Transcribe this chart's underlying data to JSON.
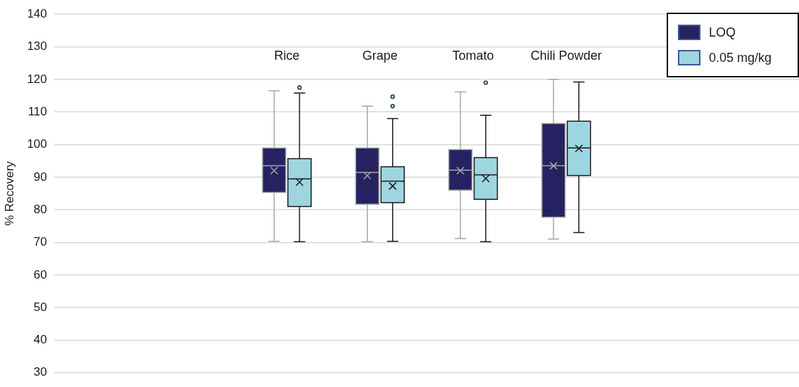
{
  "chart_data": {
    "type": "box",
    "ylabel": "% Recovery",
    "categories": [
      null,
      null,
      "Rice",
      "Grape",
      "Tomato",
      "Chili Powder",
      null,
      null
    ],
    "ylim": [
      30,
      140
    ],
    "yticks": [
      30,
      40,
      50,
      60,
      70,
      80,
      90,
      100,
      110,
      120,
      130,
      140
    ],
    "grid": "y",
    "legend": "top right",
    "tick_labels": "y",
    "series": [
      {
        "name": "LOQ",
        "color": "#262262",
        "boxes": [
          null,
          null,
          {
            "low": 70.3,
            "q1": 85.3,
            "median": 93.5,
            "q3": 99,
            "high": 116.5,
            "mean": 92
          },
          {
            "low": 70.2,
            "q1": 81.7,
            "median": 91.5,
            "q3": 99,
            "high": 111.8,
            "mean": 90.5
          },
          {
            "low": 71.2,
            "q1": 86,
            "median": 92.2,
            "q3": 98.5,
            "high": 116.2,
            "mean": 92
          },
          {
            "low": 71,
            "q1": 77.7,
            "median": 93.5,
            "q3": 106.5,
            "high": 120,
            "mean": 93.5
          },
          null,
          null
        ]
      },
      {
        "name": "0.05 mg/kg",
        "color": "#9dd6e0",
        "boxes": [
          null,
          null,
          {
            "low": 70.2,
            "q1": 81,
            "median": 89.5,
            "q3": 95.7,
            "high": 115.8,
            "mean": 88.5,
            "outliers": [
              117.5
            ]
          },
          {
            "low": 70.3,
            "q1": 82.2,
            "median": 88.8,
            "q3": 93.2,
            "high": 108,
            "mean": 87.3,
            "outliers": [
              111.8,
              114.7
            ]
          },
          {
            "low": 70.2,
            "q1": 83.2,
            "median": 90.7,
            "q3": 96,
            "high": 109,
            "mean": 89.6,
            "outliers": [
              119
            ]
          },
          {
            "low": 73,
            "q1": 90.5,
            "median": 99,
            "q3": 107.2,
            "high": 119.2,
            "mean": 98.8
          },
          null,
          null
        ]
      }
    ]
  }
}
